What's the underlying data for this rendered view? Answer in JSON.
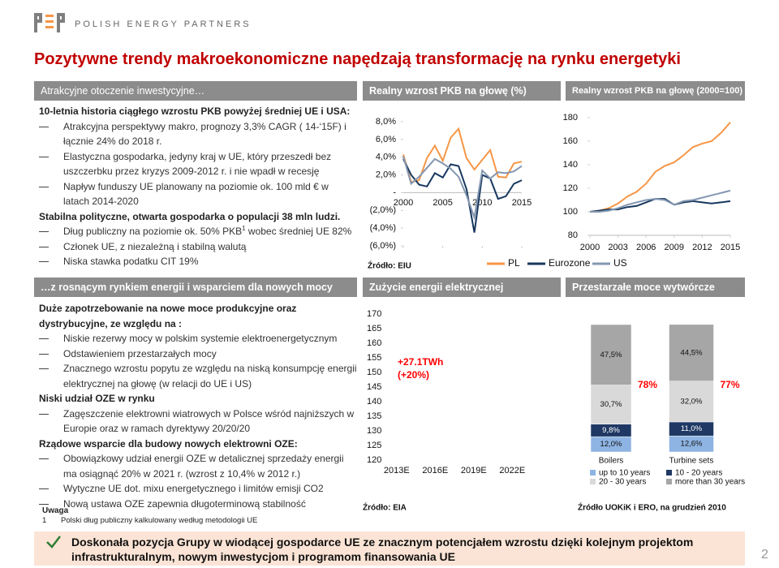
{
  "header": {
    "brand": "POLISH ENERGY PARTNERS",
    "title": "Pozytywne trendy makroekonomiczne napędzają transformację na rynku energetyki"
  },
  "panels": [
    {
      "header": "Atrakcyjne otoczenie inwestycyjne…",
      "items": [
        {
          "kind": "heading",
          "text": "10-letnia historia ciągłego wzrostu PKB powyżej średniej UE i USA:"
        },
        {
          "kind": "bullet",
          "text": "Atrakcyjna perspektywy makro, prognozy 3,3% CAGR ( 14-‘15F) i łącznie 24% do 2018 r."
        },
        {
          "kind": "bullet",
          "text": "Elastyczna gospodarka, jedyny kraj w UE, który przeszedł bez uszczerbku przez kryzys 2009-2012 r. i nie wpadł w recesję"
        },
        {
          "kind": "bullet",
          "text": "Napływ funduszy UE planowany na poziomie ok. 100 mld € w latach 2014-2020"
        },
        {
          "kind": "heading",
          "text": "Stabilna polityczne, otwarta gospodarka o populacji 38 mln ludzi."
        },
        {
          "kind": "bullet",
          "text": "Dług publiczny na poziomie ok. 50% PKB",
          "sup": "1",
          "text_after": " wobec średniej UE 82%"
        },
        {
          "kind": "bullet",
          "text": "Członek UE, z niezależną i stabilną walutą"
        },
        {
          "kind": "bullet",
          "text": "Niska stawka podatku CIT 19%"
        }
      ]
    },
    {
      "header": "…z rosnącym rynkiem energii i wsparciem dla nowych mocy",
      "items": [
        {
          "kind": "heading",
          "text": "Duże zapotrzebowanie na nowe moce produkcyjne oraz dystrybucyjne, ze względu na :"
        },
        {
          "kind": "bullet",
          "text": "Niskie rezerwy mocy w polskim systemie elektroenergetycznym"
        },
        {
          "kind": "bullet",
          "text": "Odstawieniem przestarzałych mocy"
        },
        {
          "kind": "bullet",
          "text": "Znacznego wzrostu popytu ze względu na niską konsumpcję energii elektrycznej na głowę (w relacji do UE i US)"
        },
        {
          "kind": "heading",
          "text": "Niski udział OZE w rynku"
        },
        {
          "kind": "bullet",
          "text": "Zagęszczenie elektrowni wiatrowych w Polsce wśród najniższych w Europie oraz w ramach dyrektywy 20/20/20"
        },
        {
          "kind": "heading",
          "text": "Rządowe wsparcie dla budowy nowych elektrowni OZE:"
        },
        {
          "kind": "bullet",
          "text": "Obowiązkowy udział energii OZE w detalicznej sprzedaży energii ma osiągnąć 20% w 2021 r. (wzrost z 10,4% w 2012 r.)"
        },
        {
          "kind": "bullet",
          "text": "Wytyczne UE dot. mixu energetycznego i limitów emisji CO2"
        },
        {
          "kind": "bullet",
          "text": "Nową ustawa OZE zapewnia długoterminową stabilność"
        }
      ]
    }
  ],
  "chart_data": [
    {
      "type": "line",
      "title": "Realny wzrost PKB na głowę (%)",
      "x": [
        2000,
        2001,
        2002,
        2003,
        2004,
        2005,
        2006,
        2007,
        2008,
        2009,
        2010,
        2011,
        2012,
        2013,
        2014,
        2015
      ],
      "xlim": [
        2000,
        2015
      ],
      "xticks": [
        2000,
        2005,
        2010,
        2015
      ],
      "ylim": [
        -6,
        8
      ],
      "yticks": [
        {
          "value": 8,
          "label": "8,0%"
        },
        {
          "value": 6,
          "label": "6,0%"
        },
        {
          "value": 4,
          "label": "4,0%"
        },
        {
          "value": 2,
          "label": "2,0%"
        },
        {
          "value": 0,
          "label": "-"
        },
        {
          "value": -2,
          "label": "(2,0%)"
        },
        {
          "value": -4,
          "label": "(4,0%)"
        },
        {
          "value": -6,
          "label": "(6,0%)"
        }
      ],
      "series": [
        {
          "color": "#f79646",
          "values": [
            4.3,
            1.2,
            1.4,
            3.9,
            5.3,
            3.6,
            6.2,
            7.2,
            3.9,
            2.6,
            3.7,
            4.8,
            1.8,
            1.7,
            3.3,
            3.5
          ]
        },
        {
          "color": "#17375e",
          "values": [
            3.8,
            2.0,
            0.9,
            0.7,
            2.2,
            1.7,
            3.2,
            3.0,
            0.4,
            -4.5,
            2.0,
            1.6,
            -0.7,
            -0.4,
            1.0,
            1.4
          ]
        },
        {
          "color": "#8497b0",
          "values": [
            4.1,
            1.0,
            1.8,
            2.8,
            3.8,
            3.3,
            2.7,
            1.8,
            -0.3,
            -2.8,
            2.5,
            1.6,
            2.3,
            2.2,
            2.4,
            3.0
          ]
        }
      ],
      "source": "Źródło: EIU"
    },
    {
      "type": "line",
      "title": "Realny wzrost PKB na głowę (2000=100)",
      "x": [
        2000,
        2001,
        2002,
        2003,
        2004,
        2005,
        2006,
        2007,
        2008,
        2009,
        2010,
        2011,
        2012,
        2013,
        2014,
        2015
      ],
      "xlim": [
        2000,
        2015
      ],
      "xticks": [
        2000,
        2003,
        2006,
        2009,
        2012,
        2015
      ],
      "ylim": [
        80,
        180
      ],
      "yticks": [
        80,
        100,
        120,
        140,
        160,
        180
      ],
      "series": [
        {
          "name": "PL",
          "color": "#f79646",
          "values": [
            100,
            101,
            103,
            107,
            113,
            117,
            124,
            134,
            139,
            142,
            148,
            155,
            158,
            160,
            167,
            176
          ]
        },
        {
          "name": "Eurozone",
          "color": "#17375e",
          "values": [
            100,
            101,
            102,
            102,
            104,
            105,
            108,
            111,
            111,
            106,
            108,
            109,
            108,
            107,
            108,
            109
          ]
        },
        {
          "name": "US",
          "color": "#8497b0",
          "values": [
            100,
            100,
            101,
            103,
            106,
            108,
            110,
            111,
            110,
            106,
            109,
            110,
            112,
            114,
            116,
            118
          ]
        }
      ]
    },
    {
      "type": "bar",
      "title": "Zużycie energii elektrycznej",
      "categories": [
        "2013E",
        "2016E",
        "2019E",
        "2022E"
      ],
      "ylim": [
        120,
        170
      ],
      "yticks": [
        170,
        165,
        160,
        155,
        150,
        145,
        140,
        135,
        130,
        125,
        120
      ],
      "annotations": [
        "+27.1TWh",
        "(+20%)"
      ],
      "source": "Źródło: EIA"
    },
    {
      "type": "stacked_bar",
      "title": "Przestarzałe moce wytwórcze",
      "categories": [
        "Boilers",
        "Turbine sets"
      ],
      "ylim": [
        0,
        100
      ],
      "series": [
        {
          "name": "up to 10 years",
          "color": "#8eb4e3",
          "values": [
            12.0,
            12.6
          ],
          "value_labels": [
            "12,0%",
            "12,6%"
          ]
        },
        {
          "name": "10 - 20 years",
          "color": "#1f3864",
          "values": [
            9.8,
            11.0
          ],
          "value_labels": [
            "9,8%",
            "11,0%"
          ]
        },
        {
          "name": "20 - 30 years",
          "color": "#d9d9d9",
          "values": [
            30.7,
            32.0
          ],
          "value_labels": [
            "30,7%",
            "32,0%"
          ]
        },
        {
          "name": "more than 30 years",
          "color": "#a6a6a6",
          "values": [
            47.5,
            44.5
          ],
          "value_labels": [
            "47,5%",
            "44,5%"
          ]
        }
      ],
      "annotations": [
        "78%",
        "77%"
      ],
      "source": "Źródło UOKiK i ERO, na grudzień 2010"
    }
  ],
  "footer": {
    "note_title": "Uwaga",
    "note_number": "1",
    "note": "Polski dług publiczny kalkulowany według metodologii UE",
    "banner": "Doskonała pozycja Grupy w wiodącej gospodarce UE ze znacznym potencjałem wzrostu dzięki kolejnym projektom infrastrukturalnym, nowym inwestycjom i programom finansowania UE",
    "page_number": "2"
  }
}
